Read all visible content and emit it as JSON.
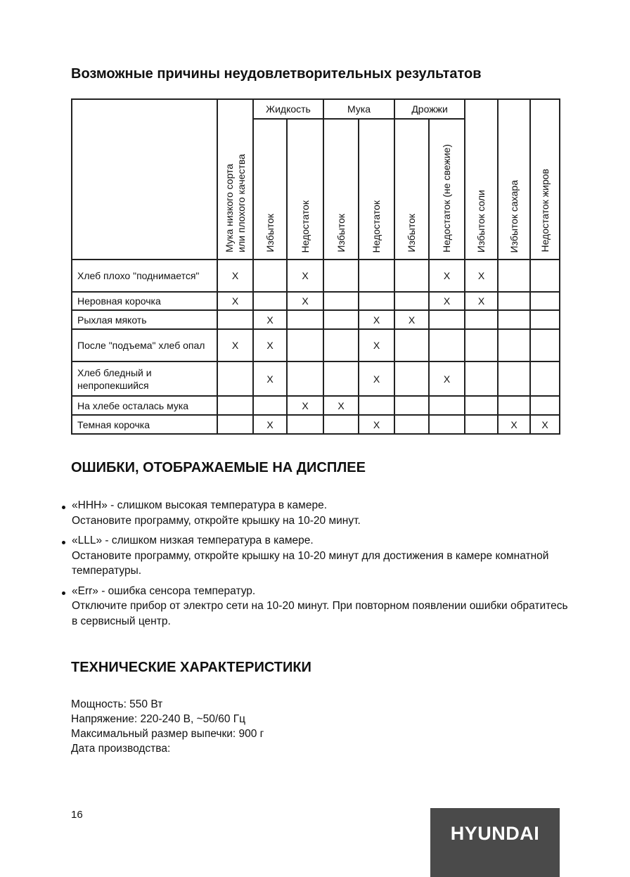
{
  "section1": {
    "title": "Возможные причины неудовлетворительных результатов"
  },
  "table": {
    "groups": [
      "Жидкость",
      "Мука",
      "Дрожжи"
    ],
    "columns": [
      "Мука низкого сорта\nили плохого качества",
      "Избыток",
      "Недостаток",
      "Избыток",
      "Недостаток",
      "Избыток",
      "Недостаток (не свежие)",
      "Избыток соли",
      "Избыток сахара",
      "Недостаток жиров"
    ],
    "rows": [
      {
        "label": "Хлеб плохо \"поднимается\"",
        "cells": [
          "X",
          "",
          "X",
          "",
          "",
          "",
          "X",
          "X",
          "",
          ""
        ]
      },
      {
        "label": "Неровная корочка",
        "cells": [
          "X",
          "",
          "X",
          "",
          "",
          "",
          "X",
          "X",
          "",
          ""
        ]
      },
      {
        "label": "Рыхлая мякоть",
        "cells": [
          "",
          "X",
          "",
          "",
          "X",
          "X",
          "",
          "",
          "",
          ""
        ]
      },
      {
        "label": "После \"подъема\" хлеб опал",
        "cells": [
          "X",
          "X",
          "",
          "",
          "X",
          "",
          "",
          "",
          "",
          ""
        ]
      },
      {
        "label": "Хлеб бледный и непропекшийся",
        "cells": [
          "",
          "X",
          "",
          "",
          "X",
          "",
          "X",
          "",
          "",
          ""
        ]
      },
      {
        "label": "На хлебе осталась мука",
        "cells": [
          "",
          "",
          "X",
          "X",
          "",
          "",
          "",
          "",
          "",
          ""
        ]
      },
      {
        "label": "Темная корочка",
        "cells": [
          "",
          "X",
          "",
          "",
          "X",
          "",
          "",
          "",
          "X",
          "X"
        ]
      }
    ]
  },
  "section2": {
    "title": "ОШИБКИ, ОТОБРАЖАЕМЫЕ НА ДИСПЛЕЕ",
    "items": [
      {
        "line1": "«HHH» - слишком высокая температура в камере.",
        "line2": "Остановите программу, откройте крышку на 10-20 минут."
      },
      {
        "line1": "«LLL» - слишком низкая температура в камере.",
        "line2": "Остановите программу, откройте крышку на 10-20 минут для достижения в камере комнатной температуры."
      },
      {
        "line1": "«Err» - ошибка сенсора температур.",
        "line2": "Отключите прибор от электро сети на 10-20 минут. При повторном появлении ошибки обратитесь в сервисный центр."
      }
    ]
  },
  "section3": {
    "title": "ТЕХНИЧЕСКИЕ ХАРАКТЕРИСТИКИ",
    "specs": [
      "Мощность: 550 Вт",
      "Напряжение: 220-240 В, ~50/60 Гц",
      "Максимальный размер выпечки: 900 г",
      "Дата производства:"
    ]
  },
  "footer": {
    "page_number": "16",
    "logo": "HYUNDAI",
    "logo_bg": "#4a4a4a"
  }
}
